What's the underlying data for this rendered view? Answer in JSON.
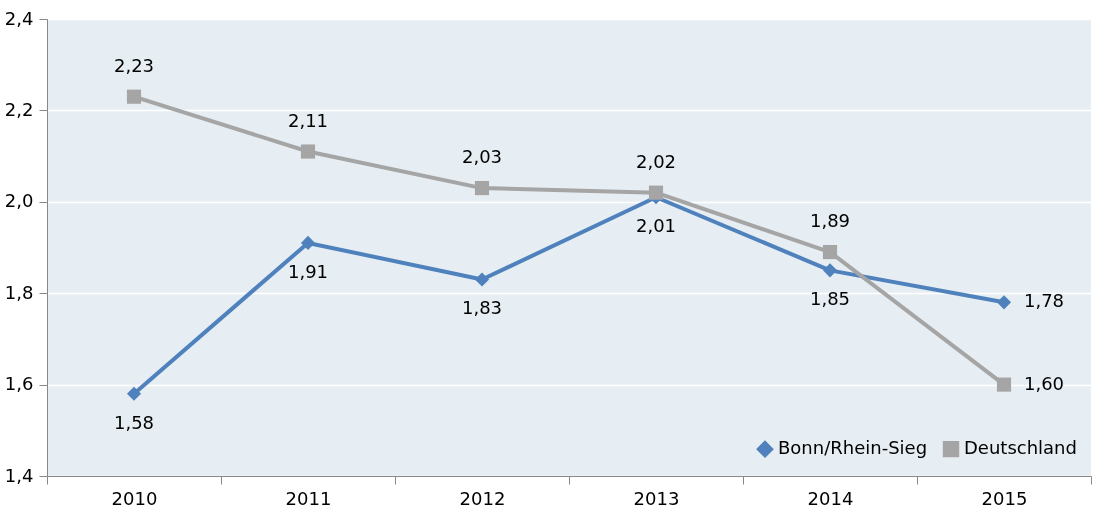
{
  "chart_data": {
    "type": "line",
    "categories": [
      "2010",
      "2011",
      "2012",
      "2013",
      "2014",
      "2015"
    ],
    "series": [
      {
        "name": "Bonn/Rhein-Sieg",
        "color": "#4f81bd",
        "marker": "diamond",
        "values": [
          1.58,
          1.91,
          1.83,
          2.01,
          1.85,
          1.78
        ],
        "value_labels": [
          "1,58",
          "1,91",
          "1,83",
          "2,01",
          "1,85",
          "1,78"
        ]
      },
      {
        "name": "Deutschland",
        "color": "#a5a5a5",
        "marker": "square",
        "values": [
          2.23,
          2.11,
          2.03,
          2.02,
          1.89,
          1.6
        ],
        "value_labels": [
          "2,23",
          "2,11",
          "2,03",
          "2,02",
          "1,89",
          "1,60"
        ]
      }
    ],
    "ylim": [
      1.4,
      2.4
    ],
    "yticks": [
      {
        "value": 1.4,
        "label": "1,4"
      },
      {
        "value": 1.6,
        "label": "1,6"
      },
      {
        "value": 1.8,
        "label": "1,8"
      },
      {
        "value": 2.0,
        "label": "2,0"
      },
      {
        "value": 2.2,
        "label": "2,2"
      },
      {
        "value": 2.4,
        "label": "2,4"
      }
    ],
    "grid": "y",
    "legend": "bottom right"
  }
}
